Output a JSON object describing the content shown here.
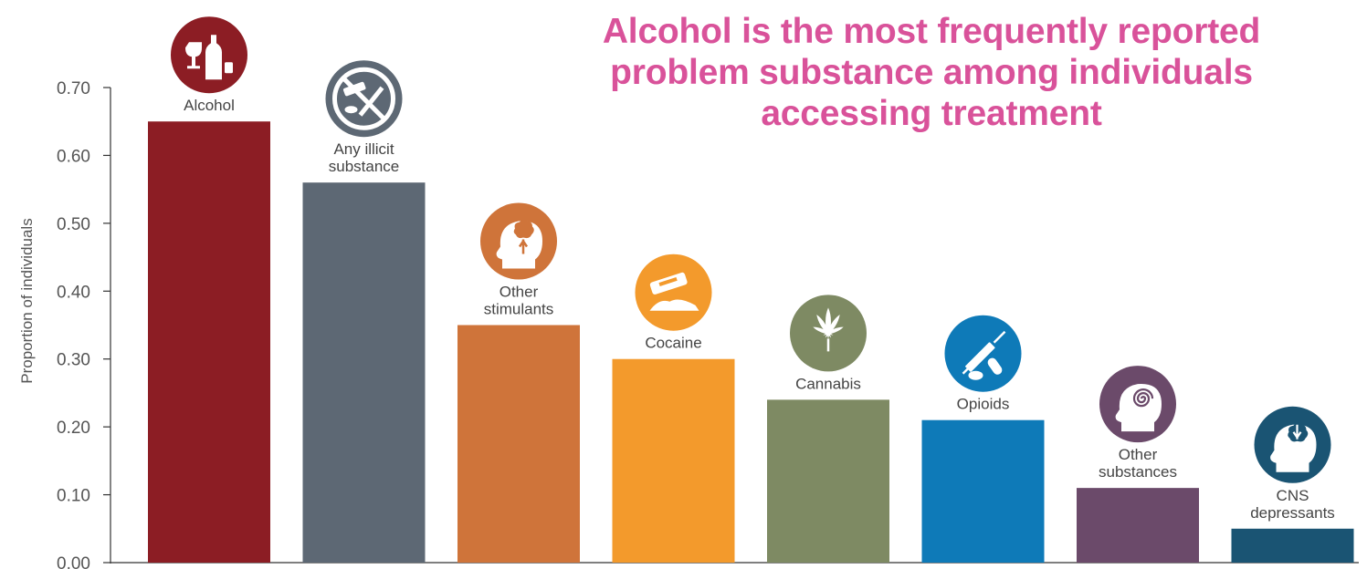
{
  "chart_data": {
    "type": "bar",
    "title": "Alcohol is the most frequently reported problem substance among individuals accessing treatment",
    "xlabel": "",
    "ylabel": "Proportion of individuals",
    "ylim": [
      0,
      0.7
    ],
    "yticks": [
      "0.00",
      "0.10",
      "0.20",
      "0.30",
      "0.40",
      "0.50",
      "0.60",
      "0.70"
    ],
    "grid": false,
    "categories": [
      "Alcohol",
      "Any illicit substance",
      "Other stimulants",
      "Cocaine",
      "Cannabis",
      "Opioids",
      "Other substances",
      "CNS depressants"
    ],
    "label_lines": [
      [
        "Alcohol"
      ],
      [
        "Any illicit",
        "substance"
      ],
      [
        "Other",
        "stimulants"
      ],
      [
        "Cocaine"
      ],
      [
        "Cannabis"
      ],
      [
        "Opioids"
      ],
      [
        "Other",
        "substances"
      ],
      [
        "CNS",
        "depressants"
      ]
    ],
    "values": [
      0.65,
      0.56,
      0.35,
      0.3,
      0.24,
      0.21,
      0.11,
      0.05
    ],
    "colors": [
      "#8c1d24",
      "#5d6874",
      "#cf743a",
      "#f39a2c",
      "#7e8a63",
      "#0e7ab8",
      "#6b4a6a",
      "#1a5473"
    ],
    "icons": [
      "wine-bottle-glass-icon",
      "no-drugs-icon",
      "brain-stimulant-icon",
      "razor-powder-icon",
      "cannabis-leaf-icon",
      "syringe-pills-icon",
      "spiral-head-icon",
      "brain-depressant-icon"
    ]
  }
}
